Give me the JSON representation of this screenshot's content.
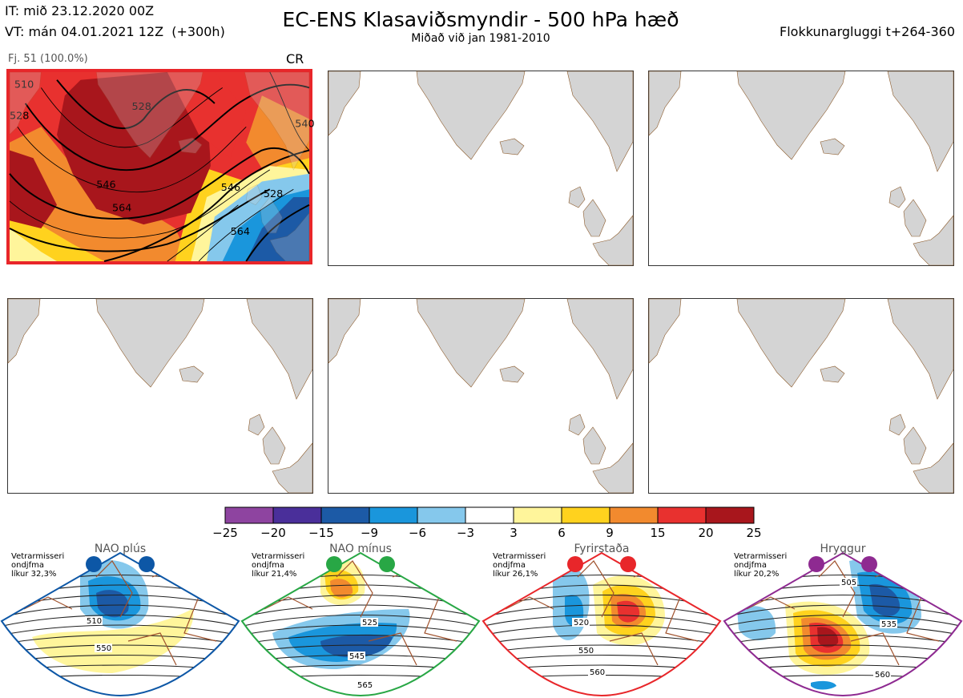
{
  "header": {
    "it_line": "IT: mið 23.12.2020 00Z",
    "vt_line": "VT: mán 04.01.2021 12Z  (+300h)",
    "title": "EC-ENS Klasaviðsmyndir - 500 hPa hæð",
    "subtitle": "Miðað við jan 1981-2010",
    "window": "Flokkunargluggi t+264-360"
  },
  "active_cluster": {
    "count_label": "Fj. 51 (100.0%)",
    "regime_code": "CR",
    "contour_labels": [
      "510",
      "528",
      "528",
      "546",
      "564",
      "546",
      "528",
      "564",
      "540"
    ]
  },
  "colorbar": {
    "ticks": [
      "−25",
      "−20",
      "−15",
      "−9",
      "−6",
      "−3",
      "3",
      "6",
      "9",
      "15",
      "20",
      "25"
    ],
    "colors": [
      "#8e44a0",
      "#4a2f9a",
      "#1c5aa6",
      "#1a96dc",
      "#85c8ec",
      "#ffffff",
      "#fff59b",
      "#ffd21e",
      "#f28a2e",
      "#e8312f",
      "#a8161c"
    ]
  },
  "regimes": [
    {
      "name": "NAO plús",
      "info": "Vetrarmisseri\nondjfma\nlíkur 32,3%",
      "color": "#0d57a6",
      "labels": [
        "510",
        "550"
      ]
    },
    {
      "name": "NAO mínus",
      "info": "Vetrarmisseri\nondjfma\nlíkur 21,4%",
      "color": "#28a745",
      "labels": [
        "525",
        "545",
        "565"
      ]
    },
    {
      "name": "Fyrirstaða",
      "info": "Vetrarmisseri\nondjfma\nlíkur 26,1%",
      "color": "#e8262a",
      "labels": [
        "520",
        "550",
        "560"
      ]
    },
    {
      "name": "Hryggur",
      "info": "Vetrarmisseri\nondjfma\nlíkur 20,2%",
      "color": "#8e2a91",
      "labels": [
        "505",
        "535",
        "560"
      ]
    }
  ]
}
